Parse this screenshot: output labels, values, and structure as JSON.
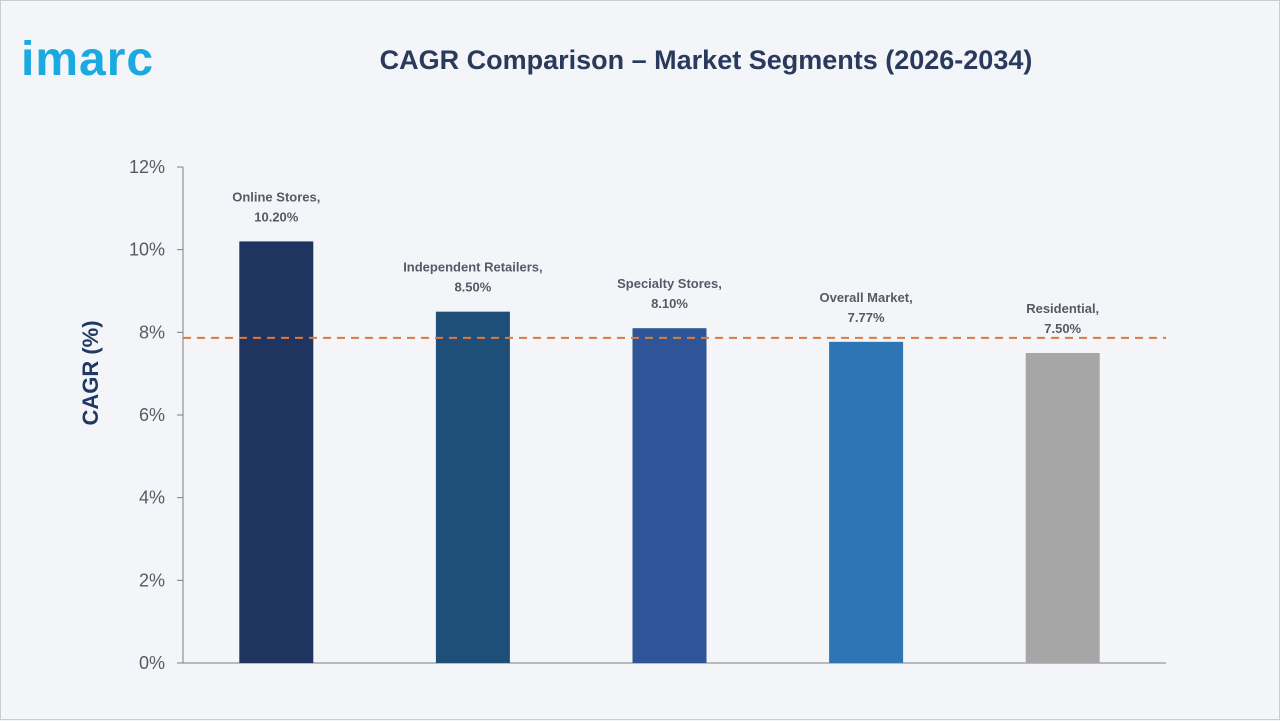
{
  "header": {
    "logo_text": "imarc",
    "title": "CAGR Comparison – Market Segments (2026-2034)"
  },
  "colors": {
    "logo": "#1aa9e0",
    "axis": "#7f7f7f",
    "reference_line": "#e07a3a"
  },
  "chart_data": {
    "type": "bar",
    "title": "CAGR Comparison – Market Segments (2026-2034)",
    "xlabel": "",
    "ylabel": "CAGR (%)",
    "ylim": [
      0,
      12
    ],
    "yticks": [
      0,
      2,
      4,
      6,
      8,
      10,
      12
    ],
    "ytick_labels": [
      "0%",
      "2%",
      "4%",
      "6%",
      "8%",
      "10%",
      "12%"
    ],
    "grid": false,
    "categories": [
      "Online Stores",
      "Independent Retailers",
      "Specialty Stores",
      "Overall Market",
      "Residential"
    ],
    "values": [
      10.2,
      8.5,
      8.1,
      7.77,
      7.5
    ],
    "data_labels": [
      [
        "Online Stores,",
        "10.20%"
      ],
      [
        "Independent Retailers,",
        "8.50%"
      ],
      [
        "Specialty Stores,",
        "8.10%"
      ],
      [
        "Overall Market,",
        "7.77%"
      ],
      [
        "Residential,",
        "7.50%"
      ]
    ],
    "bar_colors": [
      "#1f3560",
      "#1f4e79",
      "#2e5597",
      "#2e75b6",
      "#a6a6a6"
    ],
    "reference_line": {
      "value": 7.77,
      "style": "dashed",
      "color": "#e07a3a"
    }
  }
}
